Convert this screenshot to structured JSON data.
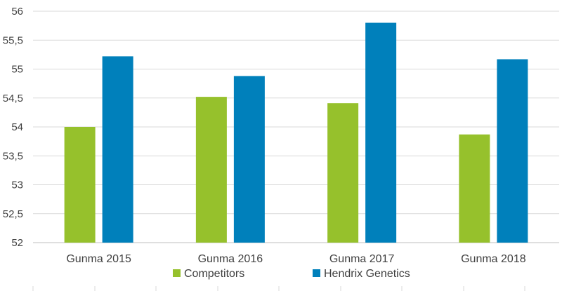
{
  "chart_data": {
    "type": "bar",
    "categories": [
      "Gunma 2015",
      "Gunma 2016",
      "Gunma 2017",
      "Gunma 2018"
    ],
    "series": [
      {
        "name": "Competitors",
        "color": "#96c12c",
        "values": [
          54.0,
          54.52,
          54.41,
          53.87
        ]
      },
      {
        "name": "Hendrix Genetics",
        "color": "#0080bb",
        "values": [
          55.22,
          54.88,
          55.8,
          55.17
        ]
      }
    ],
    "ylim": [
      52,
      56
    ],
    "y_ticks": [
      "52",
      "52,5",
      "53",
      "53,5",
      "54",
      "54,5",
      "55",
      "55,5",
      "56"
    ],
    "grid": true,
    "legend_position": "bottom",
    "title": "",
    "xlabel": "",
    "ylabel": ""
  }
}
